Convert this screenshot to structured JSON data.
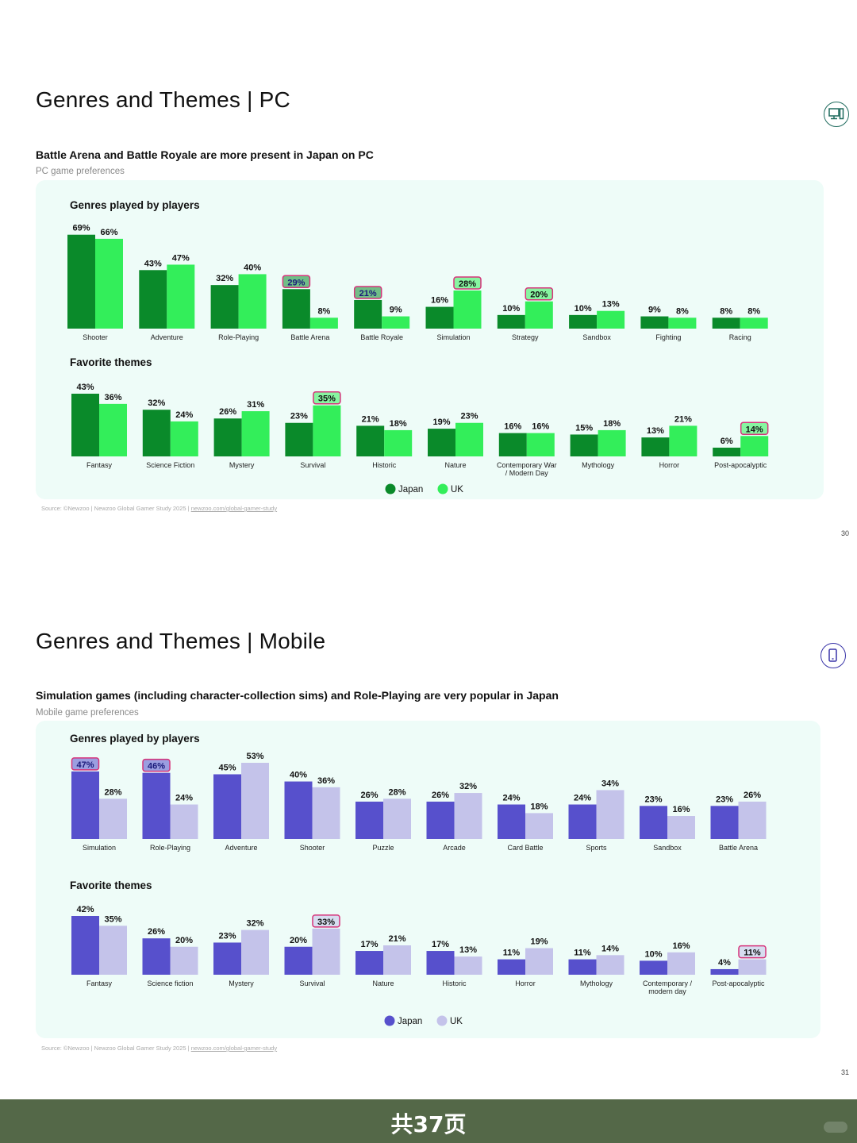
{
  "footer": {
    "text": "共37页"
  },
  "slides": [
    {
      "id": "pc",
      "title": "Genres and Themes | PC",
      "subtitle": "Battle Arena and Battle Royale are more present in Japan on PC",
      "caption": "PC  game preferences",
      "source_text": "Source: ©Newzoo | Newzoo Global Gamer Study 2025 | ",
      "source_link": "newzoo.com/global-gamer-study",
      "page_number": "30",
      "icon": "desktop-computer-icon",
      "colors": {
        "japan": "#0a8a2a",
        "uk": "#33ee5a",
        "panel": "#eefcf8",
        "highlight": "#d6337a",
        "icon": "#1f6b5e"
      },
      "legend": [
        "Japan",
        "UK"
      ]
    },
    {
      "id": "mobile",
      "title": "Genres and Themes | Mobile",
      "subtitle": "Simulation games (including character-collection sims) and Role-Playing are very popular in Japan",
      "caption": "Mobile game preferences",
      "source_text": "Source: ©Newzoo | Newzoo Global Gamer Study 2025 | ",
      "source_link": "newzoo.com/global-gamer-study",
      "page_number": "31",
      "icon": "mobile-phone-icon",
      "colors": {
        "japan": "#5750cc",
        "uk": "#c4c3ea",
        "panel": "#eefcf8",
        "highlight": "#d6337a",
        "icon": "#3a35a8"
      },
      "legend": [
        "Japan",
        "UK"
      ]
    }
  ],
  "chart_data": [
    {
      "type": "bar",
      "title": "Genres played by players",
      "categories": [
        "Shooter",
        "Adventure",
        "Role-Playing",
        "Battle Arena",
        "Battle Royale",
        "Simulation",
        "Strategy",
        "Sandbox",
        "Fighting",
        "Racing"
      ],
      "series": [
        {
          "name": "Japan",
          "values": [
            69,
            43,
            32,
            29,
            21,
            16,
            10,
            10,
            9,
            8
          ]
        },
        {
          "name": "UK",
          "values": [
            66,
            47,
            40,
            8,
            9,
            28,
            20,
            13,
            8,
            8
          ]
        }
      ],
      "labels_japan": [
        "69%",
        "43%",
        "32%",
        "29%",
        "21%",
        "16%",
        "10%",
        "10%",
        "9%",
        "8%"
      ],
      "labels_uk": [
        "66%",
        "47%",
        "40%",
        "8%",
        "9%",
        "28%",
        "20%",
        "13%",
        "8%",
        "8%"
      ],
      "highlighted": [
        {
          "series": "Japan",
          "category": "Battle Arena"
        },
        {
          "series": "Japan",
          "category": "Battle Royale"
        },
        {
          "series": "UK",
          "category": "Simulation"
        },
        {
          "series": "UK",
          "category": "Strategy"
        }
      ],
      "ylim": [
        0,
        70
      ]
    },
    {
      "type": "bar",
      "title": "Favorite themes",
      "categories": [
        "Fantasy",
        "Science Fiction",
        "Mystery",
        "Survival",
        "Historic",
        "Nature",
        "Contemporary War / Modern Day",
        "Mythology",
        "Horror",
        "Post-apocalyptic"
      ],
      "series": [
        {
          "name": "Japan",
          "values": [
            43,
            32,
            26,
            23,
            21,
            19,
            16,
            15,
            13,
            6
          ]
        },
        {
          "name": "UK",
          "values": [
            36,
            24,
            31,
            35,
            18,
            23,
            16,
            18,
            21,
            14
          ]
        }
      ],
      "labels_japan": [
        "43%",
        "32%",
        "26%",
        "23%",
        "21%",
        "19%",
        "16%",
        "15%",
        "13%",
        "6%"
      ],
      "labels_uk": [
        "36%",
        "24%",
        "31%",
        "35%",
        "18%",
        "23%",
        "16%",
        "18%",
        "21%",
        "14%"
      ],
      "highlighted": [
        {
          "series": "UK",
          "category": "Survival"
        },
        {
          "series": "UK",
          "category": "Post-apocalyptic"
        }
      ],
      "ylim": [
        0,
        43
      ]
    },
    {
      "type": "bar",
      "title": "Genres played by players",
      "categories": [
        "Simulation",
        "Role-Playing",
        "Adventure",
        "Shooter",
        "Puzzle",
        "Arcade",
        "Card Battle",
        "Sports",
        "Sandbox",
        "Battle Arena"
      ],
      "series": [
        {
          "name": "Japan",
          "values": [
            47,
            46,
            45,
            40,
            26,
            26,
            24,
            24,
            23,
            23
          ]
        },
        {
          "name": "UK",
          "values": [
            28,
            24,
            53,
            36,
            28,
            32,
            18,
            34,
            16,
            26
          ]
        }
      ],
      "labels_japan": [
        "47%",
        "46%",
        "45%",
        "40%",
        "26%",
        "26%",
        "24%",
        "24%",
        "23%",
        "23%"
      ],
      "labels_uk": [
        "28%",
        "24%",
        "53%",
        "36%",
        "28%",
        "32%",
        "18%",
        "34%",
        "16%",
        "26%"
      ],
      "highlighted": [
        {
          "series": "Japan",
          "category": "Simulation"
        },
        {
          "series": "Japan",
          "category": "Role-Playing"
        }
      ],
      "ylim": [
        0,
        53
      ]
    },
    {
      "type": "bar",
      "title": "Favorite themes",
      "categories": [
        "Fantasy",
        "Science fiction",
        "Mystery",
        "Survival",
        "Nature",
        "Historic",
        "Horror",
        "Mythology",
        "Contemporary / modern day",
        "Post-apocalyptic"
      ],
      "series": [
        {
          "name": "Japan",
          "values": [
            42,
            26,
            23,
            20,
            17,
            17,
            11,
            11,
            10,
            4
          ]
        },
        {
          "name": "UK",
          "values": [
            35,
            20,
            32,
            33,
            21,
            13,
            19,
            14,
            16,
            11
          ]
        }
      ],
      "labels_japan": [
        "42%",
        "26%",
        "23%",
        "20%",
        "17%",
        "17%",
        "11%",
        "11%",
        "10%",
        "4%"
      ],
      "labels_uk": [
        "35%",
        "20%",
        "32%",
        "33%",
        "21%",
        "13%",
        "19%",
        "14%",
        "16%",
        "11%"
      ],
      "highlighted": [
        {
          "series": "UK",
          "category": "Survival"
        },
        {
          "series": "UK",
          "category": "Post-apocalyptic"
        }
      ],
      "ylim": [
        0,
        42
      ]
    }
  ]
}
